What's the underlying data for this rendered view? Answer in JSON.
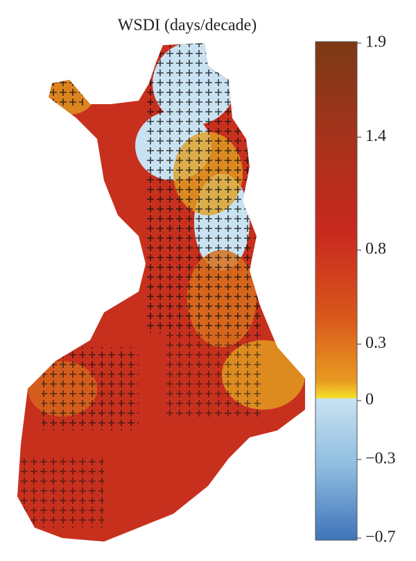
{
  "title": "WSDI (days/decade)",
  "colorbar": {
    "lim": [
      -0.7,
      1.9
    ],
    "zero": 0,
    "ticks": [
      1.9,
      1.4,
      0.8,
      0.3,
      0,
      {
        "value": -0.3,
        "label": "−0.3"
      },
      {
        "value": -0.7,
        "label": "−0.7"
      }
    ]
  }
}
